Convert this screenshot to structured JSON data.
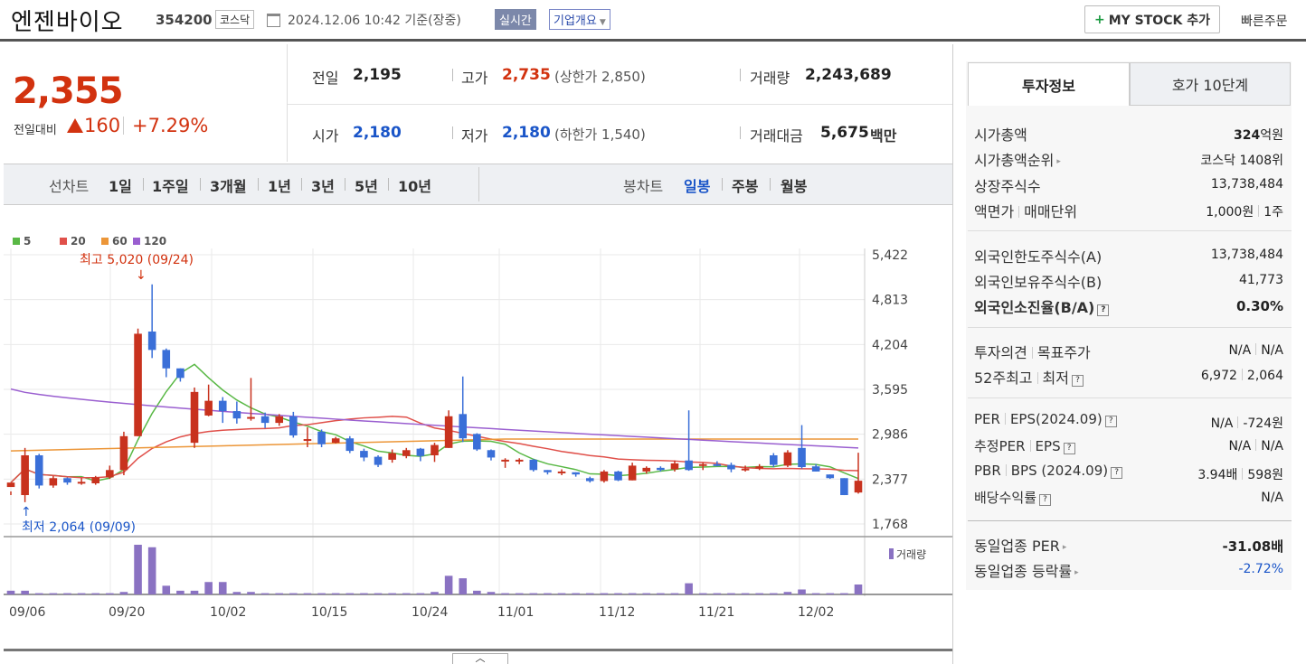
{
  "header": {
    "name": "엔젠바이오",
    "code": "354200",
    "market": "코스닥",
    "as_of": "2024.12.06 10:42 기준(장중)",
    "realtime": "실시간",
    "company_info": "기업개요",
    "mystock": "MY STOCK 추가",
    "quick_order": "빠른주문"
  },
  "price": {
    "current": "2,355",
    "change_label": "전일대비",
    "change_amount": "160",
    "change_pct": "+7.29%"
  },
  "quote": {
    "prev_label": "전일",
    "prev": "2,195",
    "high_label": "고가",
    "high": "2,735",
    "upper_limit": "(상한가 2,850)",
    "volume_label": "거래량",
    "volume": "2,243,689",
    "open_label": "시가",
    "open": "2,180",
    "low_label": "저가",
    "low": "2,180",
    "lower_limit": "(하한가 1,540)",
    "value_label": "거래대금",
    "value": "5,675",
    "value_unit": "백만"
  },
  "ranges": {
    "line_chart": "선차트",
    "items": [
      "1일",
      "1주일",
      "3개월",
      "1년",
      "3년",
      "5년",
      "10년"
    ],
    "candle_chart": "봉차트",
    "candles": [
      "일봉",
      "주봉",
      "월봉"
    ],
    "active_candle": "일봉"
  },
  "chart_data": {
    "type": "candlestick",
    "legend": [
      "5",
      "20",
      "60",
      "120"
    ],
    "ma_colors": [
      "#59b845",
      "#e0504a",
      "#ec9638",
      "#9a5fd0"
    ],
    "y_ticks": [
      "5,422",
      "4,813",
      "4,204",
      "3,595",
      "2,986",
      "2,377",
      "1,768"
    ],
    "ylim": [
      1768,
      5422
    ],
    "x_ticks": [
      "09/06",
      "09/20",
      "10/02",
      "10/15",
      "10/24",
      "11/01",
      "11/12",
      "11/21",
      "12/02"
    ],
    "high_annotation": "최고 5,020 (09/24)",
    "low_annotation": "최저 2,064 (09/09)",
    "volume_label": "거래량",
    "candles": [
      [
        2270,
        2330,
        2210,
        2160
      ],
      [
        2160,
        2700,
        2800,
        2064
      ],
      [
        2700,
        2290,
        2720,
        2250
      ],
      [
        2290,
        2390,
        2420,
        2260
      ],
      [
        2390,
        2330,
        2400,
        2300
      ],
      [
        2330,
        2340,
        2390,
        2300
      ],
      [
        2320,
        2400,
        2420,
        2300
      ],
      [
        2400,
        2500,
        2560,
        2380
      ],
      [
        2500,
        2960,
        3020,
        2430
      ],
      [
        2960,
        4350,
        4420,
        2960
      ],
      [
        4380,
        4130,
        5020,
        4020
      ],
      [
        4130,
        3880,
        4150,
        3760
      ],
      [
        3880,
        3750,
        3880,
        3700
      ],
      [
        2870,
        3560,
        3620,
        2800
      ],
      [
        3240,
        3440,
        3660,
        3230
      ],
      [
        3440,
        3300,
        3490,
        3140
      ],
      [
        3300,
        3200,
        3430,
        3130
      ],
      [
        3200,
        3220,
        3750,
        3170
      ],
      [
        3230,
        3140,
        3280,
        3070
      ],
      [
        3140,
        3230,
        3260,
        3100
      ],
      [
        3230,
        2970,
        3290,
        2940
      ],
      [
        2900,
        2920,
        3080,
        2810
      ],
      [
        3020,
        2850,
        3050,
        2810
      ],
      [
        2870,
        2930,
        2950,
        2860
      ],
      [
        2930,
        2760,
        2960,
        2730
      ],
      [
        2760,
        2670,
        2790,
        2620
      ],
      [
        2680,
        2570,
        2700,
        2540
      ],
      [
        2640,
        2730,
        2780,
        2600
      ],
      [
        2690,
        2770,
        2800,
        2660
      ],
      [
        2790,
        2690,
        2800,
        2620
      ],
      [
        2700,
        2840,
        2870,
        2610
      ],
      [
        2800,
        3230,
        3310,
        2800
      ],
      [
        3260,
        2930,
        3770,
        2880
      ],
      [
        2990,
        2780,
        3000,
        2760
      ],
      [
        2770,
        2670,
        2780,
        2630
      ],
      [
        2630,
        2640,
        2660,
        2530
      ],
      [
        2620,
        2640,
        2660,
        2580
      ],
      [
        2640,
        2500,
        2650,
        2480
      ],
      [
        2500,
        2470,
        2500,
        2440
      ],
      [
        2470,
        2480,
        2510,
        2430
      ],
      [
        2470,
        2440,
        2470,
        2410
      ],
      [
        2390,
        2350,
        2410,
        2330
      ],
      [
        2350,
        2480,
        2500,
        2330
      ],
      [
        2480,
        2360,
        2490,
        2350
      ],
      [
        2360,
        2560,
        2600,
        2360
      ],
      [
        2480,
        2530,
        2550,
        2450
      ],
      [
        2530,
        2500,
        2550,
        2480
      ],
      [
        2510,
        2590,
        2630,
        2480
      ],
      [
        2630,
        2500,
        3310,
        2490
      ],
      [
        2560,
        2580,
        2600,
        2500
      ],
      [
        2580,
        2570,
        2620,
        2550
      ],
      [
        2570,
        2510,
        2600,
        2470
      ],
      [
        2500,
        2520,
        2560,
        2480
      ],
      [
        2520,
        2550,
        2580,
        2500
      ],
      [
        2700,
        2570,
        2730,
        2540
      ],
      [
        2560,
        2740,
        2770,
        2540
      ],
      [
        2800,
        2540,
        3110,
        2520
      ],
      [
        2550,
        2480,
        2580,
        2480
      ],
      [
        2440,
        2390,
        2440,
        2380
      ],
      [
        2390,
        2160,
        2390,
        2160
      ],
      [
        2195,
        2355,
        2735,
        2180
      ]
    ],
    "volumes": [
      3,
      3,
      1,
      1,
      1,
      1,
      1,
      1,
      2,
      40,
      38,
      7,
      3,
      3,
      10,
      10,
      2,
      2,
      1,
      1,
      1,
      1,
      1,
      1,
      1,
      1,
      1,
      1,
      1,
      1,
      2,
      15,
      13,
      3,
      2,
      1,
      1,
      1,
      1,
      1,
      1,
      1,
      1,
      1,
      1,
      1,
      1,
      1,
      9,
      1,
      1,
      1,
      1,
      1,
      1,
      2,
      4,
      1,
      1,
      1,
      8
    ]
  },
  "panel": {
    "tabs": [
      "투자정보",
      "호가 10단계"
    ],
    "market_cap_label": "시가총액",
    "market_cap": "324",
    "market_cap_unit": "억원",
    "rank_label": "시가총액순위",
    "rank": "코스닥 1408위",
    "shares_label": "상장주식수",
    "shares": "13,738,484",
    "face_label": "액면가",
    "unit_label": "매매단위",
    "face": "1,000원",
    "unit": "1주",
    "foreign_limit_label": "외국인한도주식수(A)",
    "foreign_limit": "13,738,484",
    "foreign_hold_label": "외국인보유주식수(B)",
    "foreign_hold": "41,773",
    "foreign_ratio_label": "외국인소진율(B/A)",
    "foreign_ratio": "0.30%",
    "opinion_label": "투자의견",
    "target_label": "목표주가",
    "opinion": "N/A",
    "target": "N/A",
    "w52_label": "52주최고",
    "w52_low_label": "최저",
    "w52_high": "6,972",
    "w52_low": "2,064",
    "per_label": "PER",
    "eps_label": "EPS(2024.09)",
    "per": "N/A",
    "eps": "-724원",
    "est_per_label": "추정PER",
    "est_eps_label": "EPS",
    "est_per": "N/A",
    "est_eps": "N/A",
    "pbr_label": "PBR",
    "bps_label": "BPS (2024.09)",
    "pbr": "3.94배",
    "bps": "598원",
    "div_label": "배당수익률",
    "div": "N/A",
    "sector_per_label": "동일업종 PER",
    "sector_per": "-31.08배",
    "sector_chg_label": "동일업종 등락률",
    "sector_chg": "-2.72%"
  }
}
